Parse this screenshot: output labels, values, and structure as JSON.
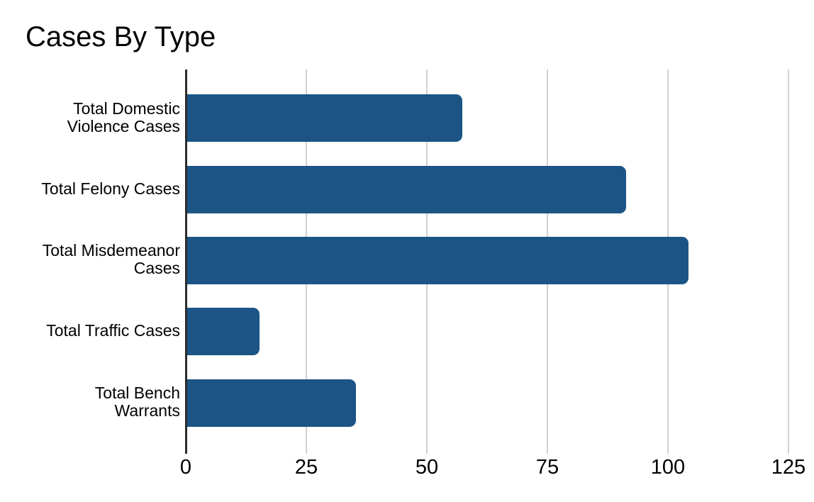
{
  "page": {
    "background": "#ffffff"
  },
  "chart_data": {
    "type": "bar",
    "orientation": "horizontal",
    "title": "Cases By Type",
    "categories": [
      "Total Domestic Violence Cases",
      "Total Felony Cases",
      "Total Misdemeanor Cases",
      "Total Traffic Cases",
      "Total Bench Warrants"
    ],
    "categories_display": [
      [
        "Total Domestic",
        "Violence Cases"
      ],
      [
        "Total Felony Cases"
      ],
      [
        "Total Misdemeanor",
        "Cases"
      ],
      [
        "Total Traffic Cases"
      ],
      [
        "Total Bench",
        "Warrants"
      ]
    ],
    "values": [
      57,
      91,
      104,
      15,
      35
    ],
    "xlabel": "",
    "ylabel": "",
    "xlim": [
      0,
      125
    ],
    "x_ticks": [
      0,
      25,
      50,
      75,
      100,
      125
    ],
    "grid": true,
    "legend": "none",
    "colors": {
      "bar": "#1c5585",
      "gridline": "#d0d0d0",
      "axis_line": "#2b2b2b",
      "text": "#000000"
    }
  }
}
